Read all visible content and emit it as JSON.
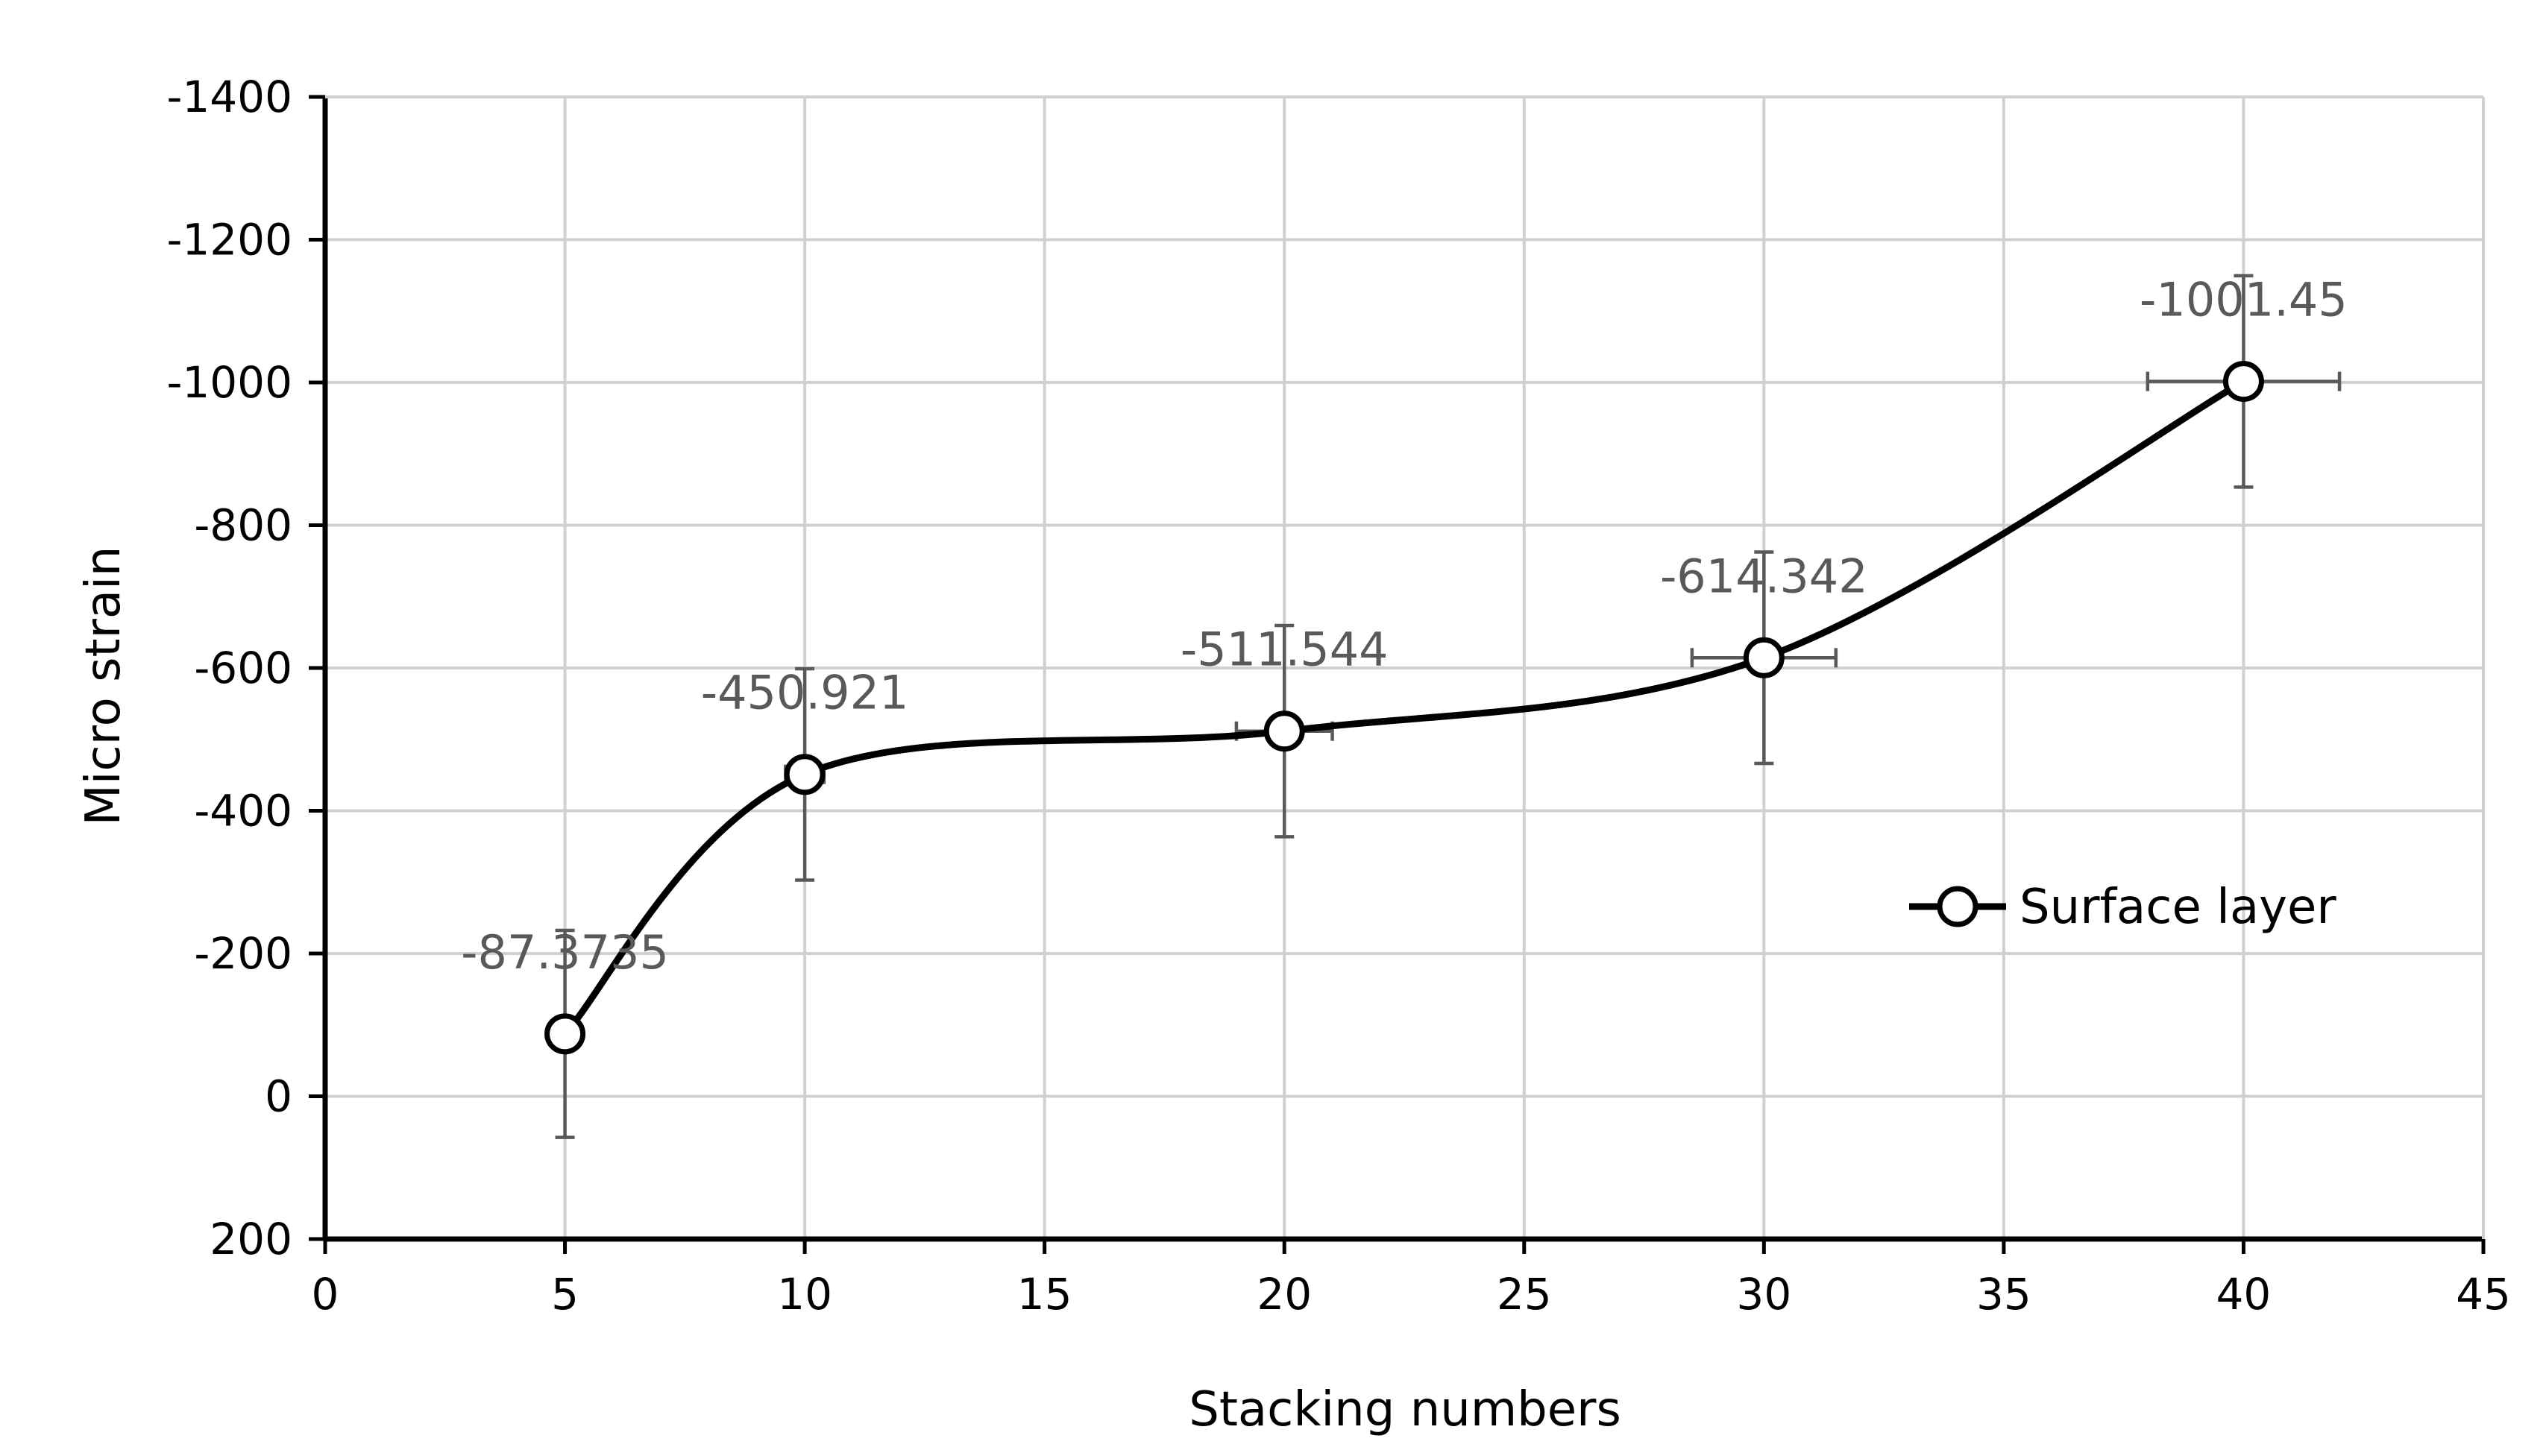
{
  "chart_data": {
    "type": "scatter",
    "title": "",
    "xlabel": "Stacking numbers",
    "ylabel": "Micro strain",
    "xlim": [
      0,
      45
    ],
    "ylim": [
      200,
      -1400
    ],
    "y_axis_reversed": true,
    "x_ticks": [
      0,
      5,
      10,
      15,
      20,
      25,
      30,
      35,
      40,
      45
    ],
    "y_ticks": [
      -1400,
      -1200,
      -1000,
      -800,
      -600,
      -400,
      -200,
      0,
      200
    ],
    "grid": true,
    "line_style": "smooth",
    "legend_position": "right",
    "series": [
      {
        "name": "Surface layer",
        "marker": "open-circle",
        "color": "#000000",
        "x": [
          5,
          10,
          20,
          30,
          40
        ],
        "y": [
          -87.3735,
          -450.921,
          -511.544,
          -614.342,
          -1001.45
        ],
        "labels": [
          "-87.3735",
          "-450.921",
          "-511.544",
          "-614.342",
          "-1001.45"
        ],
        "y_error": [
          145,
          148,
          148,
          148,
          148
        ],
        "x_error": [
          0,
          0.4,
          1,
          1.5,
          2
        ]
      }
    ]
  }
}
